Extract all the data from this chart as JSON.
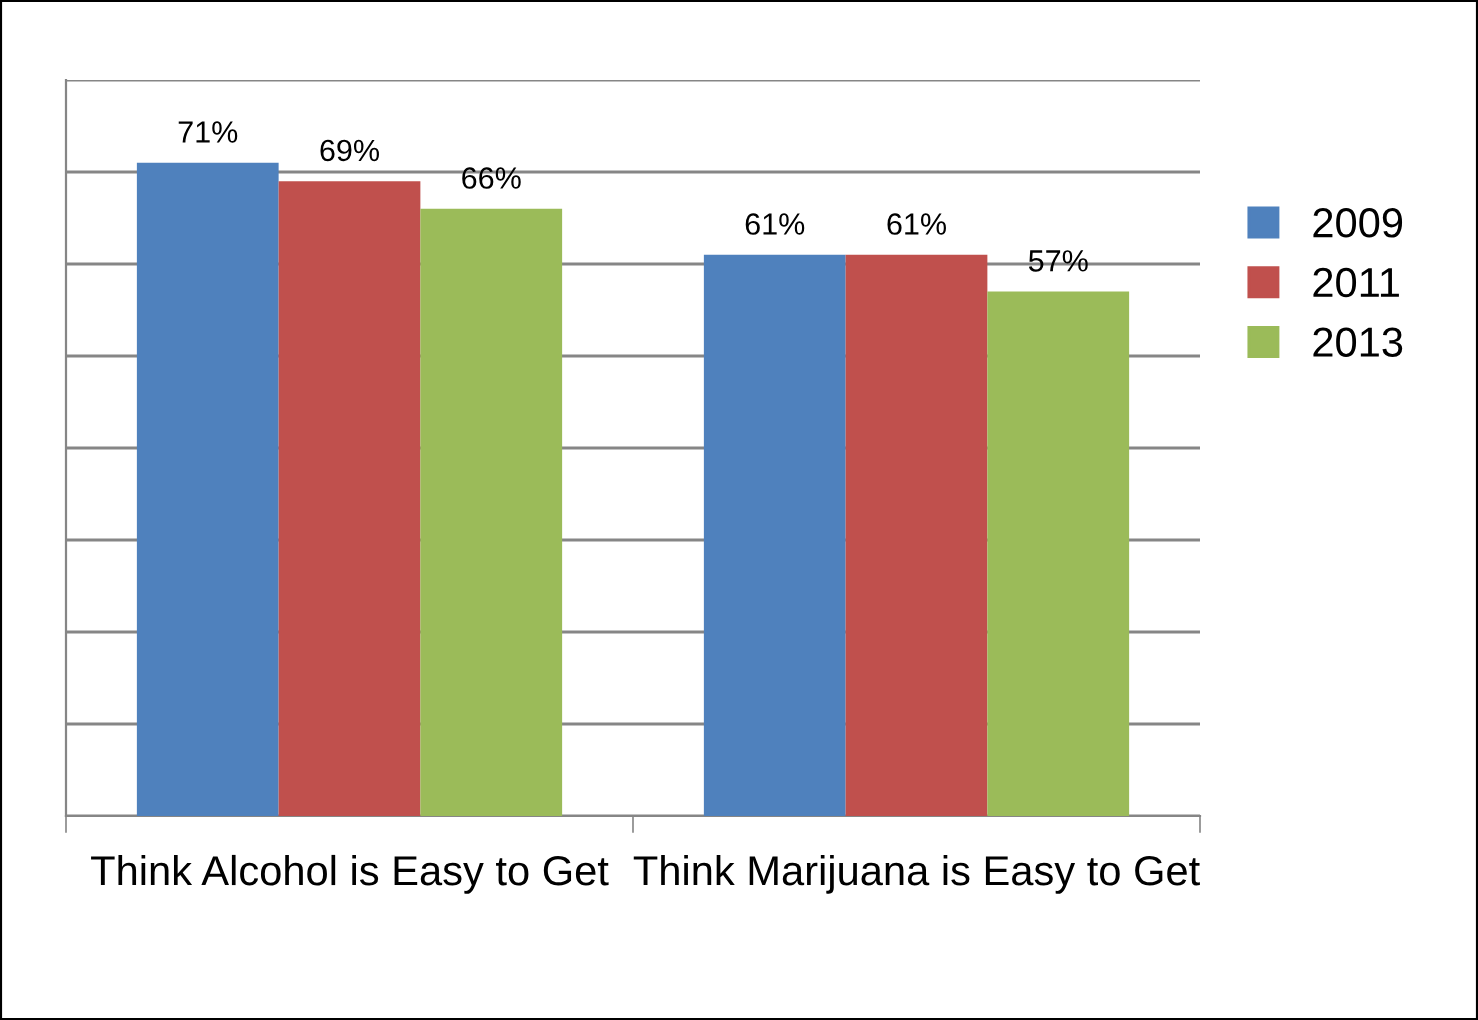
{
  "chart_data": {
    "type": "bar",
    "categories": [
      "Think Alcohol is Easy to Get",
      "Think Marijuana is Easy to Get"
    ],
    "series": [
      {
        "name": "2009",
        "color": "#4f81bd",
        "values": [
          71,
          61
        ],
        "value_labels": [
          "71%",
          "61%"
        ]
      },
      {
        "name": "2011",
        "color": "#c0504d",
        "values": [
          69,
          61
        ],
        "value_labels": [
          "69%",
          "61%"
        ]
      },
      {
        "name": "2013",
        "color": "#9bbb59",
        "values": [
          66,
          57
        ],
        "value_labels": [
          "66%",
          "57%"
        ]
      }
    ],
    "ylim": [
      0,
      80
    ],
    "yticks": [
      {
        "value": 0,
        "label": null
      },
      {
        "value": 10,
        "label": null
      },
      {
        "value": 20,
        "label": null
      },
      {
        "value": 30,
        "label": null
      },
      {
        "value": 40,
        "label": null
      },
      {
        "value": 50,
        "label": null
      },
      {
        "value": 60,
        "label": null
      },
      {
        "value": 70,
        "label": null
      },
      {
        "value": 80,
        "label": null
      }
    ],
    "grid": "y",
    "legend": "right",
    "tick_labels": "x"
  }
}
